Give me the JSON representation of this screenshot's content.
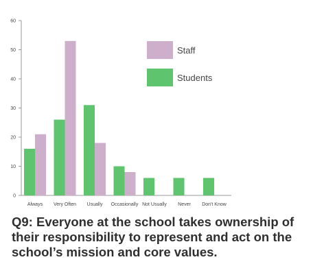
{
  "chart_data": {
    "type": "bar",
    "categories": [
      "Always",
      "Very Often",
      "Usually",
      "Occasionally",
      "Not Usually",
      "Never",
      "Don't Know"
    ],
    "series": [
      {
        "name": "Students",
        "color": "#5fc46e",
        "values": [
          16,
          26,
          31,
          10,
          6,
          6,
          6
        ]
      },
      {
        "name": "Staff",
        "color": "#cdaecb",
        "values": [
          21,
          53,
          18,
          8,
          0,
          0,
          0
        ]
      }
    ],
    "ylim": [
      0,
      60
    ],
    "yticks": [
      0,
      10,
      20,
      30,
      40,
      50,
      60
    ],
    "grid": false,
    "legend_placement": "top-right",
    "legend_order": [
      "Staff",
      "Students"
    ]
  },
  "caption": "Q9: Everyone at the school takes ownership of their responsibility to represent and act on the school’s mission and core values."
}
